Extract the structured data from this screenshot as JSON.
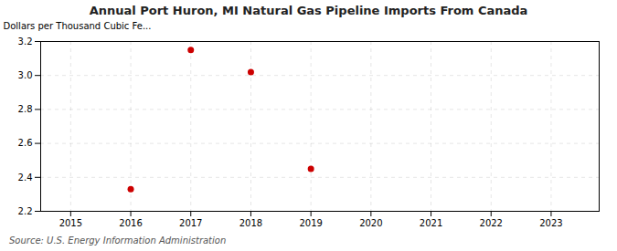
{
  "chart_data": {
    "type": "scatter",
    "title": "Annual Port Huron, MI Natural Gas Pipeline Imports From Canada",
    "ylabel": "Dollars per Thousand Cubic Fe...",
    "x": [
      2016,
      2017,
      2018,
      2019
    ],
    "values": [
      2.33,
      3.15,
      3.02,
      2.45
    ],
    "color": "#cc0000",
    "xlim": [
      2014.5,
      2023.8
    ],
    "ylim": [
      2.2,
      3.2
    ],
    "xticks": [
      2015,
      2016,
      2017,
      2018,
      2019,
      2020,
      2021,
      2022,
      2023
    ],
    "yticks": [
      2.2,
      2.4,
      2.6,
      2.8,
      {
        "value": 3.0,
        "label": "3.0"
      },
      3.2
    ],
    "grid": true,
    "annotation": "Source: U.S. Energy Information Administration"
  }
}
